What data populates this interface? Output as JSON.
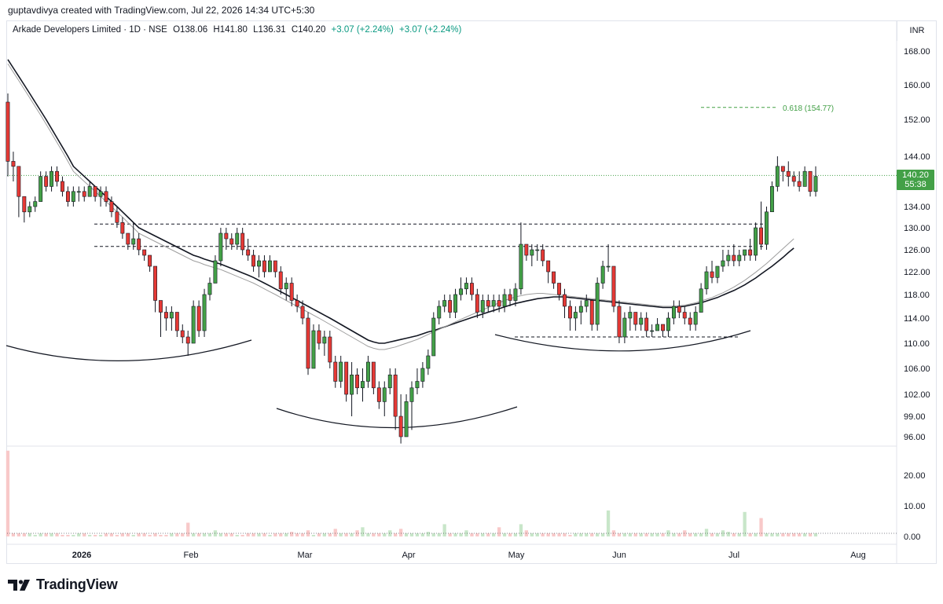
{
  "caption": "guptavdivya created with TradingView.com, Jul 22, 2026 14:34 UTC+5:30",
  "legend": {
    "symbol": "Arkade Developers Limited · 1D · NSE",
    "open": "O138.06",
    "high": "H141.80",
    "low": "L136.31",
    "close": "C140.20",
    "change": "+3.07 (+2.24%)",
    "change2": "+3.07 (+2.24%)"
  },
  "currency": "INR",
  "last_price_badge": {
    "price": "140.20",
    "countdown": "55:38"
  },
  "fib_label": "0.618 (154.77)",
  "logo_text": "TradingView",
  "colors": {
    "up": "#43a047",
    "down": "#e53935",
    "vol_up": "#c8e6c9",
    "vol_down": "#f8c9c9",
    "ma_slow": "#131722",
    "ma_fast": "#9e9e9e",
    "fib": "#43a047"
  },
  "chart_data": {
    "type": "candlestick",
    "title": "Arkade Developers Limited · 1D · NSE",
    "price_axis_ticks": [
      "168.00",
      "160.00",
      "152.00",
      "144.00",
      "134.00",
      "130.00",
      "126.00",
      "122.00",
      "118.00",
      "114.00",
      "110.00",
      "106.00",
      "102.00",
      "99.00",
      "96.00"
    ],
    "volume_axis_ticks": [
      "20.00",
      "10.00",
      "0.00"
    ],
    "x_ticks": [
      "2026",
      "Feb",
      "Mar",
      "Apr",
      "May",
      "Jun",
      "Jul",
      "Aug"
    ],
    "ylim": [
      95,
      171
    ],
    "candles": [
      [
        156,
        158,
        140,
        143
      ],
      [
        143,
        145,
        139,
        142
      ],
      [
        142,
        142,
        132,
        136
      ],
      [
        136,
        136,
        131,
        133
      ],
      [
        133,
        135,
        132,
        134
      ],
      [
        134,
        136,
        133,
        135
      ],
      [
        135,
        141,
        135,
        140
      ],
      [
        140,
        141,
        137,
        138
      ],
      [
        138,
        142,
        137,
        141
      ],
      [
        141,
        142,
        138,
        139
      ],
      [
        139,
        140,
        136,
        137
      ],
      [
        137,
        138,
        134,
        135
      ],
      [
        135,
        138,
        134,
        137
      ],
      [
        137,
        138,
        135,
        137
      ],
      [
        137,
        138,
        135,
        136
      ],
      [
        136,
        139,
        136,
        138
      ],
      [
        138,
        138,
        135,
        136
      ],
      [
        136,
        138,
        134,
        137
      ],
      [
        137,
        138,
        134,
        135
      ],
      [
        135,
        136,
        132,
        133
      ],
      [
        133,
        134,
        130,
        131
      ],
      [
        131,
        132,
        128,
        129
      ],
      [
        129,
        129,
        126,
        127
      ],
      [
        127,
        131,
        126,
        128
      ],
      [
        128,
        129,
        125,
        126
      ],
      [
        126,
        126,
        124,
        125
      ],
      [
        125,
        125,
        122,
        123
      ],
      [
        123,
        123,
        115,
        117
      ],
      [
        117,
        117,
        111,
        115
      ],
      [
        115,
        116,
        112,
        114
      ],
      [
        114,
        116,
        112,
        115
      ],
      [
        115,
        115,
        111,
        112
      ],
      [
        112,
        113,
        110,
        111
      ],
      [
        111,
        112,
        108,
        110
      ],
      [
        110,
        117,
        110,
        116
      ],
      [
        116,
        117,
        111,
        112
      ],
      [
        112,
        119,
        111,
        118
      ],
      [
        118,
        121,
        117,
        120
      ],
      [
        120,
        125,
        120,
        124
      ],
      [
        124,
        130,
        123,
        129
      ],
      [
        129,
        130,
        126,
        128
      ],
      [
        128,
        129,
        126,
        127
      ],
      [
        127,
        130,
        126,
        129
      ],
      [
        129,
        130,
        125,
        126
      ],
      [
        126,
        128,
        124,
        125
      ],
      [
        125,
        126,
        122,
        123
      ],
      [
        123,
        125,
        121,
        124
      ],
      [
        124,
        125,
        121,
        122
      ],
      [
        122,
        125,
        122,
        124
      ],
      [
        124,
        124,
        121,
        122
      ],
      [
        122,
        123,
        118,
        119
      ],
      [
        119,
        121,
        117,
        120
      ],
      [
        120,
        121,
        116,
        117
      ],
      [
        117,
        118,
        115,
        116
      ],
      [
        116,
        117,
        113,
        114
      ],
      [
        114,
        115,
        105,
        106
      ],
      [
        106,
        113,
        106,
        112
      ],
      [
        112,
        113,
        109,
        110
      ],
      [
        110,
        112,
        108,
        111
      ],
      [
        111,
        112,
        106,
        107
      ],
      [
        107,
        108,
        103,
        104
      ],
      [
        104,
        108,
        103,
        107
      ],
      [
        107,
        107,
        101,
        102
      ],
      [
        102,
        107,
        99,
        105
      ],
      [
        105,
        106,
        102,
        103
      ],
      [
        103,
        106,
        101,
        104
      ],
      [
        104,
        108,
        103,
        107
      ],
      [
        107,
        107,
        102,
        103
      ],
      [
        103,
        104,
        100,
        101
      ],
      [
        101,
        104,
        99,
        103
      ],
      [
        103,
        106,
        102,
        105
      ],
      [
        105,
        106,
        97,
        99
      ],
      [
        99,
        102,
        95,
        96
      ],
      [
        96,
        102,
        96,
        101
      ],
      [
        101,
        104,
        97,
        103
      ],
      [
        103,
        106,
        102,
        104
      ],
      [
        104,
        107,
        103,
        106
      ],
      [
        106,
        109,
        105,
        108
      ],
      [
        108,
        115,
        108,
        114
      ],
      [
        114,
        117,
        113,
        116
      ],
      [
        116,
        118,
        115,
        117
      ],
      [
        117,
        118,
        114,
        115
      ],
      [
        115,
        119,
        114,
        118
      ],
      [
        118,
        121,
        117,
        119
      ],
      [
        119,
        121,
        118,
        120
      ],
      [
        120,
        121,
        117,
        118
      ],
      [
        118,
        119,
        114,
        115
      ],
      [
        115,
        118,
        114,
        117
      ],
      [
        117,
        118,
        115,
        116
      ],
      [
        116,
        118,
        115,
        117
      ],
      [
        117,
        118,
        115,
        116
      ],
      [
        116,
        119,
        115,
        118
      ],
      [
        118,
        119,
        116,
        117
      ],
      [
        117,
        120,
        116,
        119
      ],
      [
        119,
        131,
        118,
        127
      ],
      [
        127,
        127,
        124,
        125
      ],
      [
        125,
        127,
        123,
        126
      ],
      [
        126,
        127,
        124,
        126
      ],
      [
        126,
        127,
        123,
        124
      ],
      [
        124,
        124,
        120,
        122
      ],
      [
        122,
        122,
        119,
        120
      ],
      [
        120,
        120,
        117,
        118
      ],
      [
        118,
        119,
        114,
        116
      ],
      [
        116,
        117,
        112,
        114
      ],
      [
        114,
        116,
        112,
        115
      ],
      [
        115,
        117,
        113,
        116
      ],
      [
        116,
        118,
        115,
        117
      ],
      [
        117,
        117,
        112,
        113
      ],
      [
        113,
        121,
        112,
        120
      ],
      [
        120,
        124,
        119,
        123
      ],
      [
        123,
        127,
        122,
        123
      ],
      [
        123,
        123,
        115,
        116
      ],
      [
        116,
        117,
        110,
        111
      ],
      [
        111,
        115,
        110,
        114
      ],
      [
        114,
        116,
        112,
        115
      ],
      [
        115,
        115,
        112,
        113
      ],
      [
        113,
        115,
        112,
        114
      ],
      [
        114,
        115,
        111,
        112
      ],
      [
        112,
        113,
        111,
        112
      ],
      [
        112,
        114,
        112,
        113
      ],
      [
        113,
        113,
        111,
        112
      ],
      [
        112,
        115,
        111,
        114
      ],
      [
        114,
        117,
        113,
        116
      ],
      [
        116,
        117,
        114,
        115
      ],
      [
        115,
        116,
        113,
        114
      ],
      [
        114,
        115,
        112,
        113
      ],
      [
        113,
        116,
        112,
        115
      ],
      [
        115,
        120,
        115,
        119
      ],
      [
        119,
        123,
        118,
        122
      ],
      [
        122,
        124,
        120,
        121
      ],
      [
        121,
        123,
        120,
        123
      ],
      [
        123,
        126,
        122,
        124
      ],
      [
        124,
        126,
        123,
        125
      ],
      [
        125,
        127,
        123,
        124
      ],
      [
        124,
        126,
        123,
        125
      ],
      [
        125,
        126,
        124,
        126
      ],
      [
        126,
        128,
        124,
        125
      ],
      [
        125,
        131,
        124,
        130
      ],
      [
        130,
        135,
        126,
        127
      ],
      [
        127,
        134,
        126,
        133
      ],
      [
        133,
        139,
        133,
        138
      ],
      [
        138,
        144,
        137,
        142
      ],
      [
        142,
        142,
        139,
        141
      ],
      [
        141,
        143,
        138,
        140
      ],
      [
        140,
        141,
        138,
        139
      ],
      [
        139,
        141,
        137,
        138
      ],
      [
        138,
        142,
        138,
        141
      ],
      [
        141,
        141,
        136,
        137
      ],
      [
        137,
        142,
        136,
        140
      ]
    ],
    "volume": [
      28,
      1,
      1,
      1,
      1,
      0.5,
      1,
      1,
      1,
      1,
      0.5,
      0.5,
      0.5,
      1,
      1,
      0.5,
      0.5,
      0.5,
      1,
      1,
      0.5,
      1,
      1,
      0.5,
      1,
      1,
      0.5,
      1,
      0.5,
      0.5,
      1,
      1,
      1,
      4.5,
      1,
      1,
      1,
      1,
      2,
      1,
      1,
      1,
      0.5,
      0.5,
      1,
      1,
      1,
      1,
      0.5,
      1,
      1,
      1,
      1.5,
      1,
      1,
      2,
      0.5,
      1,
      1,
      1,
      2.5,
      1,
      1,
      1,
      2,
      3,
      1,
      1,
      1,
      1,
      2,
      1,
      2.5,
      1,
      1,
      1,
      1,
      1.5,
      1,
      1,
      4,
      1,
      1,
      1,
      2,
      1,
      1,
      1,
      1,
      1,
      3,
      1,
      1,
      1,
      4,
      2,
      1,
      1,
      1,
      1,
      1,
      1,
      1,
      0.5,
      1,
      1,
      1,
      1,
      1,
      1,
      8.5,
      2,
      1,
      1,
      1,
      1,
      1,
      1,
      1,
      1,
      1,
      2,
      1,
      1,
      2,
      1,
      1,
      1,
      2.5,
      1,
      1,
      2,
      1.5,
      1,
      1,
      8,
      1,
      1,
      6,
      1,
      1,
      1,
      1,
      1,
      1,
      1,
      1,
      1,
      1
    ],
    "series": [
      {
        "name": "",
        "type": "ma",
        "values": [
          166,
          164,
          162,
          160,
          158,
          156,
          154,
          152,
          150,
          148,
          146,
          144,
          142,
          141,
          140,
          139,
          138,
          137,
          136,
          135,
          134,
          133,
          132,
          131,
          130,
          129.5,
          129,
          128.5,
          128,
          127.5,
          127,
          126.5,
          126,
          125.5,
          125,
          124.7,
          124.3,
          124,
          123.7,
          123.4,
          123,
          122.6,
          122.2,
          121.8,
          121.4,
          121,
          120.5,
          120,
          119.5,
          119,
          118.5,
          118,
          117.5,
          117,
          116.5,
          116,
          115.5,
          115,
          114.5,
          114,
          113.5,
          113,
          112.5,
          112,
          111.5,
          111,
          110.5,
          110.2,
          110,
          110,
          110.2,
          110.4,
          110.6,
          110.8,
          111,
          111.2,
          111.5,
          111.8,
          112,
          112.3,
          112.6,
          112.9,
          113.2,
          113.5,
          113.8,
          114.1,
          114.4,
          114.7,
          115,
          115.3,
          115.6,
          115.9,
          116.2,
          116.5,
          116.7,
          116.9,
          117.1,
          117.3,
          117.4,
          117.5,
          117.6,
          117.6,
          117.6,
          117.5,
          117.4,
          117.3,
          117.2,
          117.1,
          117,
          116.9,
          116.8,
          116.7,
          116.6,
          116.5,
          116.4,
          116.3,
          116.2,
          116.1,
          116,
          115.9,
          115.8,
          115.8,
          115.8,
          115.9,
          116,
          116.2,
          116.4,
          116.6,
          116.9,
          117.2,
          117.5,
          117.9,
          118.3,
          118.7,
          119.2,
          119.7,
          120.3,
          120.9,
          121.6,
          122.3,
          123,
          123.8,
          124.6,
          125.5,
          126.3
        ]
      },
      {
        "name": "",
        "type": "ma",
        "values": [
          165,
          163,
          161,
          159,
          157,
          155,
          153,
          151,
          149,
          147,
          145,
          143,
          141,
          140,
          139,
          138,
          137,
          136,
          135,
          134,
          133,
          132,
          131,
          130,
          129,
          128.5,
          128,
          127.5,
          127,
          126.5,
          126,
          125.5,
          125,
          124.5,
          124,
          123.7,
          123.3,
          123,
          122.7,
          122.4,
          122,
          121.6,
          121.2,
          120.8,
          120.4,
          120,
          119.5,
          119,
          118.5,
          118,
          117.5,
          117,
          116.5,
          116,
          115.5,
          115,
          114.5,
          114,
          113.5,
          113,
          112.5,
          112,
          111.5,
          111,
          110.5,
          110,
          109.5,
          109.2,
          109,
          109,
          109.2,
          109.4,
          109.7,
          110,
          110.3,
          110.6,
          111,
          111.4,
          111.8,
          112.2,
          112.6,
          113,
          113.4,
          113.8,
          114.2,
          114.6,
          115,
          115.4,
          115.8,
          116.2,
          116.6,
          117,
          117.3,
          117.6,
          117.8,
          118,
          118.1,
          118.2,
          118.2,
          118.1,
          118,
          117.9,
          117.8,
          117.7,
          117.6,
          117.5,
          117.4,
          117.3,
          117.2,
          117.1,
          117,
          116.9,
          116.8,
          116.7,
          116.6,
          116.5,
          116.4,
          116.3,
          116.2,
          116.1,
          116,
          116,
          116,
          116.1,
          116.2,
          116.4,
          116.6,
          116.9,
          117.2,
          117.5,
          117.9,
          118.3,
          118.8,
          119.3,
          119.9,
          120.5,
          121.2,
          121.9,
          122.7,
          123.5,
          124.4,
          125.3,
          126.2,
          127.1,
          128
        ]
      }
    ],
    "horizontal_levels": [
      {
        "value": 130.7,
        "style": "dashed"
      },
      {
        "value": 126.6,
        "style": "dashed"
      },
      {
        "value": 111.0,
        "style": "dashed"
      }
    ],
    "fib_level": {
      "value": 154.77,
      "label": "0.618 (154.77)"
    },
    "last_price": 140.2
  }
}
